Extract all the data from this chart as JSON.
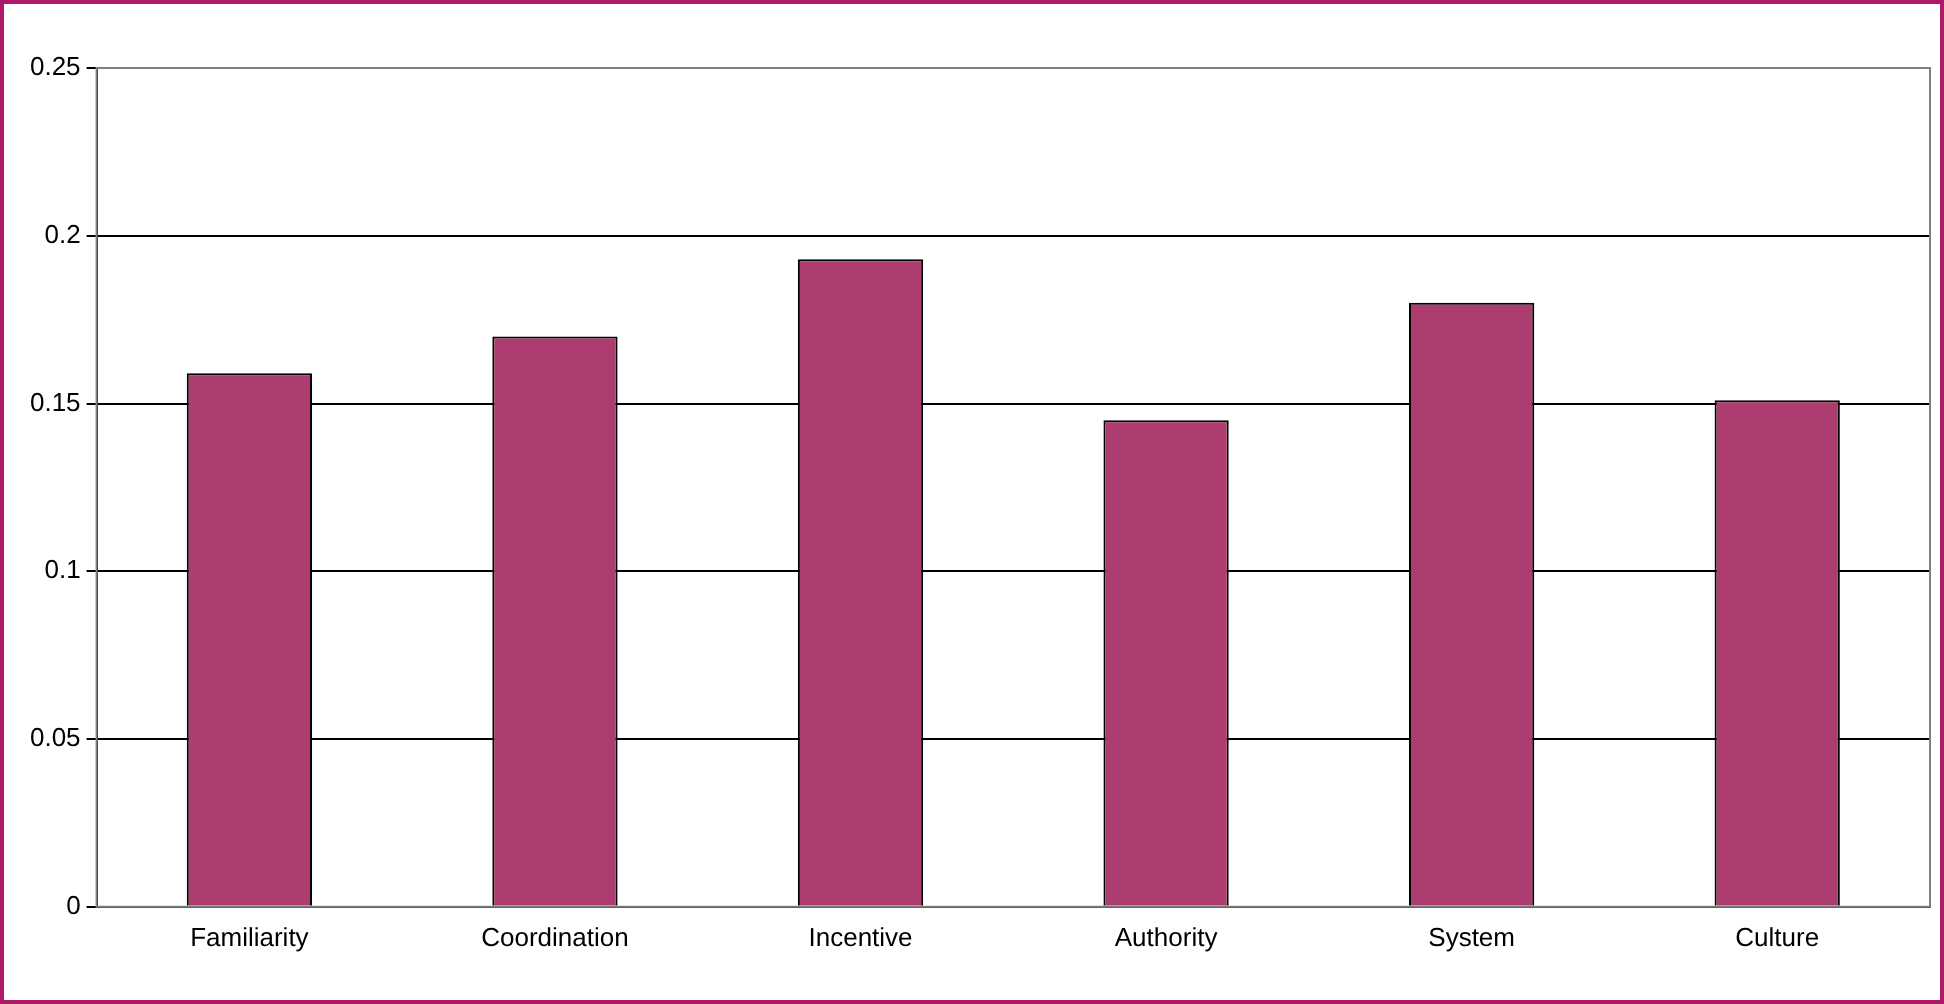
{
  "chart_data": {
    "type": "bar",
    "categories": [
      "Familiarity",
      "Coordination",
      "Incentive",
      "Authority",
      "System",
      "Culture"
    ],
    "values": [
      0.159,
      0.17,
      0.193,
      0.145,
      0.18,
      0.151
    ],
    "color": "#ad3c70",
    "ylim": [
      0,
      0.25
    ],
    "yticks": [
      0,
      0.05,
      0.1,
      0.15,
      0.2,
      0.25
    ],
    "grid": "y",
    "legend": false
  }
}
